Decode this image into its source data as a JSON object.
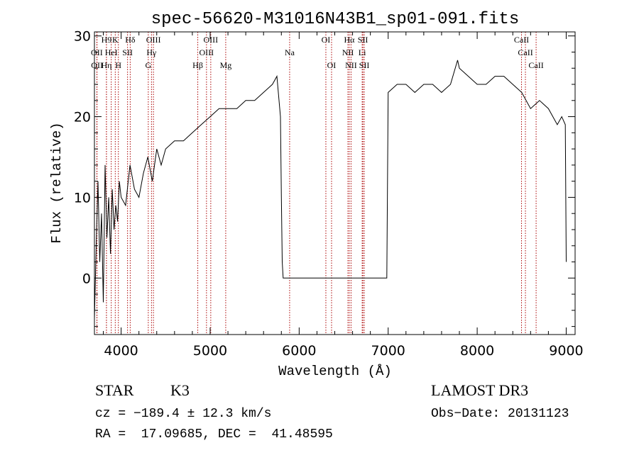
{
  "chart_data": {
    "type": "line",
    "title": "spec-56620-M31016N43B1_sp01-091.fits",
    "xlabel": "Wavelength (Å)",
    "ylabel": "Flux (relative)",
    "xlim": [
      3700,
      9100
    ],
    "ylim": [
      -7,
      30.5
    ],
    "xticks": [
      4000,
      5000,
      6000,
      7000,
      8000,
      9000
    ],
    "yticks": [
      0,
      10,
      20,
      30
    ],
    "series": [
      {
        "name": "flux",
        "x": [
          3700,
          3720,
          3740,
          3760,
          3780,
          3800,
          3820,
          3840,
          3860,
          3880,
          3900,
          3920,
          3940,
          3960,
          3980,
          4000,
          4050,
          4100,
          4150,
          4200,
          4250,
          4300,
          4350,
          4400,
          4450,
          4500,
          4600,
          4700,
          4800,
          4900,
          5000,
          5100,
          5200,
          5300,
          5400,
          5500,
          5600,
          5700,
          5750,
          5790,
          5800,
          5810,
          5820,
          5900,
          6000,
          6500,
          6960,
          6975,
          6985,
          7000,
          7100,
          7200,
          7300,
          7400,
          7500,
          7600,
          7700,
          7780,
          7800,
          7900,
          8000,
          8100,
          8200,
          8300,
          8400,
          8500,
          8600,
          8700,
          8800,
          8900,
          8950,
          8990,
          9000
        ],
        "y": [
          -5,
          4,
          12,
          2,
          8,
          -3,
          14,
          5,
          10,
          3,
          11,
          6,
          9,
          7,
          12,
          10,
          9,
          14,
          11,
          10,
          13,
          15,
          12,
          16,
          14,
          16,
          17,
          17,
          18,
          19,
          20,
          21,
          21,
          21,
          22,
          22,
          23,
          24,
          25,
          20,
          10,
          2,
          0,
          0,
          0,
          0,
          0,
          0,
          0,
          23,
          24,
          24,
          23,
          24,
          24,
          23,
          24,
          27,
          26,
          25,
          24,
          24,
          25,
          25,
          24,
          23,
          21,
          22,
          21,
          19,
          20,
          19,
          2
        ]
      }
    ],
    "line_markers": [
      {
        "name": "H9",
        "x": 3835,
        "row": 1
      },
      {
        "name": "OII",
        "x": 3727,
        "row": 2
      },
      {
        "name": "OII",
        "x": 3729,
        "row": 3
      },
      {
        "name": "K",
        "x": 3934,
        "row": 1
      },
      {
        "name": "HeI",
        "x": 3889,
        "row": 2
      },
      {
        "name": "Hη",
        "x": 3835,
        "row": 3
      },
      {
        "name": "H",
        "x": 3969,
        "row": 3
      },
      {
        "name": "Hδ",
        "x": 4102,
        "row": 1
      },
      {
        "name": "SII",
        "x": 4072,
        "row": 2
      },
      {
        "name": "OIII",
        "x": 4363,
        "row": 1
      },
      {
        "name": "Hγ",
        "x": 4341,
        "row": 2
      },
      {
        "name": "G",
        "x": 4305,
        "row": 3
      },
      {
        "name": "OIII",
        "x": 5007,
        "row": 1
      },
      {
        "name": "OIII",
        "x": 4959,
        "row": 2
      },
      {
        "name": "Hβ",
        "x": 4861,
        "row": 3
      },
      {
        "name": "Mg",
        "x": 5175,
        "row": 3
      },
      {
        "name": "Na",
        "x": 5893,
        "row": 2
      },
      {
        "name": "OI",
        "x": 6300,
        "row": 1
      },
      {
        "name": "OI",
        "x": 6364,
        "row": 3
      },
      {
        "name": "Hα",
        "x": 6563,
        "row": 1
      },
      {
        "name": "SII",
        "x": 6716,
        "row": 1
      },
      {
        "name": "NII",
        "x": 6548,
        "row": 2
      },
      {
        "name": "Li",
        "x": 6708,
        "row": 2
      },
      {
        "name": "NII",
        "x": 6583,
        "row": 3
      },
      {
        "name": "SII",
        "x": 6731,
        "row": 3
      },
      {
        "name": "CaII",
        "x": 8498,
        "row": 1
      },
      {
        "name": "CaII",
        "x": 8542,
        "row": 2
      },
      {
        "name": "CaII",
        "x": 8662,
        "row": 3
      }
    ]
  },
  "info": {
    "object_class": "STAR",
    "subclass": "K3",
    "survey": "LAMOST DR3",
    "cz": "cz = −189.4 ± 12.3 km/s",
    "obs_date": "Obs−Date: 20131123",
    "coords": "RA =  17.09685, DEC =  41.48595"
  },
  "colors": {
    "marker": "#aa0000",
    "spectrum": "#000000"
  }
}
